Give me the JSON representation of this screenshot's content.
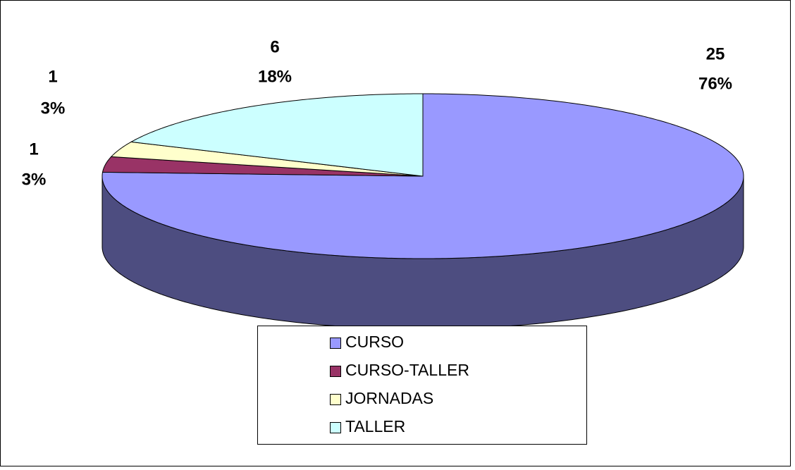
{
  "chart_data": {
    "type": "pie",
    "categories": [
      "CURSO",
      "CURSO-TALLER",
      "JORNADAS",
      "TALLER"
    ],
    "values": [
      25,
      1,
      1,
      6
    ],
    "value_labels": [
      [
        "25",
        "76%"
      ],
      [
        "1",
        "3%"
      ],
      [
        "1",
        "3%"
      ],
      [
        "6",
        "18%"
      ]
    ],
    "colors": [
      "#9999ff",
      "#993366",
      "#ffffcc",
      "#ccffff"
    ],
    "legend": "bottom"
  }
}
